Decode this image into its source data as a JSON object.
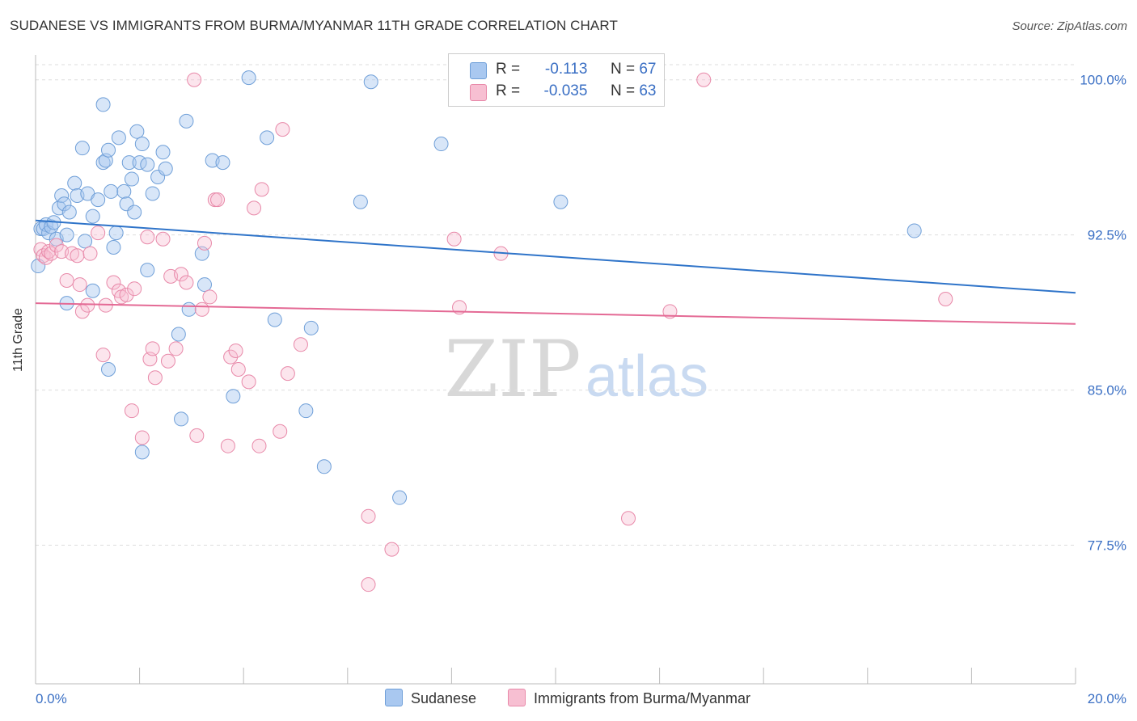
{
  "header": {
    "title": "SUDANESE VS IMMIGRANTS FROM BURMA/MYANMAR 11TH GRADE CORRELATION CHART",
    "source": "Source: ZipAtlas.com"
  },
  "watermark": {
    "zip": "ZIP",
    "atlas": "atlas"
  },
  "legend": {
    "rows": [
      {
        "r_label": "R =",
        "r_value": "-0.113",
        "n_label": "N =",
        "n_value": "67",
        "color": "#a9c8f0",
        "border": "#6f9fd8"
      },
      {
        "r_label": "R =",
        "r_value": "-0.035",
        "n_label": "N =",
        "n_value": "63",
        "color": "#f7bfd2",
        "border": "#e889a9"
      }
    ]
  },
  "bottom_legend": [
    {
      "label": "Sudanese",
      "color": "#a9c8f0",
      "border": "#6f9fd8"
    },
    {
      "label": "Immigrants from Burma/Myanmar",
      "color": "#f7bfd2",
      "border": "#e889a9"
    }
  ],
  "chart_data": {
    "type": "scatter",
    "title": "SUDANESE VS IMMIGRANTS FROM BURMA/MYANMAR 11TH GRADE CORRELATION CHART",
    "xlabel": "",
    "ylabel": "11th Grade",
    "xlim": [
      0,
      20
    ],
    "ylim": [
      70.8,
      101.2
    ],
    "x_tick_labels": [
      "0.0%",
      "20.0%"
    ],
    "y_ticks": [
      77.5,
      85.0,
      92.5,
      100.0
    ],
    "y_tick_labels": [
      "77.5%",
      "85.0%",
      "92.5%",
      "100.0%"
    ],
    "grid": "horizontal dashed",
    "colors": {
      "Sudanese": "#4f86d0",
      "Immigrants from Burma/Myanmar": "#e46a95"
    },
    "series": [
      {
        "name": "Sudanese",
        "trend": {
          "x": [
            0,
            20
          ],
          "y": [
            93.2,
            89.7
          ]
        },
        "points": [
          [
            0.05,
            91.0
          ],
          [
            0.1,
            92.8
          ],
          [
            0.15,
            92.8
          ],
          [
            0.2,
            93.0
          ],
          [
            0.25,
            92.6
          ],
          [
            0.3,
            92.9
          ],
          [
            0.35,
            93.1
          ],
          [
            0.4,
            92.3
          ],
          [
            0.45,
            93.8
          ],
          [
            0.5,
            94.4
          ],
          [
            0.55,
            94.0
          ],
          [
            0.6,
            92.5
          ],
          [
            0.65,
            93.6
          ],
          [
            0.75,
            95.0
          ],
          [
            0.8,
            94.4
          ],
          [
            0.9,
            96.7
          ],
          [
            0.95,
            92.2
          ],
          [
            1.0,
            94.5
          ],
          [
            1.1,
            93.4
          ],
          [
            1.2,
            94.2
          ],
          [
            1.3,
            96.0
          ],
          [
            1.35,
            96.1
          ],
          [
            1.4,
            96.6
          ],
          [
            1.45,
            94.6
          ],
          [
            1.5,
            91.9
          ],
          [
            1.55,
            92.6
          ],
          [
            1.6,
            97.2
          ],
          [
            1.7,
            94.6
          ],
          [
            1.75,
            94.0
          ],
          [
            1.8,
            96.0
          ],
          [
            1.85,
            95.2
          ],
          [
            1.9,
            93.6
          ],
          [
            1.95,
            97.5
          ],
          [
            2.0,
            96.0
          ],
          [
            2.05,
            96.9
          ],
          [
            2.15,
            95.9
          ],
          [
            2.25,
            94.5
          ],
          [
            2.35,
            95.3
          ],
          [
            2.45,
            96.5
          ],
          [
            2.5,
            95.7
          ],
          [
            2.9,
            98.0
          ],
          [
            3.2,
            91.6
          ],
          [
            3.25,
            90.1
          ],
          [
            3.4,
            96.1
          ],
          [
            3.6,
            96.0
          ],
          [
            3.8,
            84.7
          ],
          [
            4.1,
            100.1
          ],
          [
            4.45,
            97.2
          ],
          [
            4.6,
            88.4
          ],
          [
            5.2,
            84.0
          ],
          [
            5.3,
            88.0
          ],
          [
            5.55,
            81.3
          ],
          [
            6.25,
            94.1
          ],
          [
            6.45,
            99.9
          ],
          [
            7.0,
            79.8
          ],
          [
            7.8,
            96.9
          ],
          [
            10.1,
            94.1
          ],
          [
            16.9,
            92.7
          ],
          [
            0.6,
            89.2
          ],
          [
            1.1,
            89.8
          ],
          [
            1.4,
            86.0
          ],
          [
            2.05,
            82.0
          ],
          [
            2.15,
            90.8
          ],
          [
            2.75,
            87.7
          ],
          [
            2.8,
            83.6
          ],
          [
            2.95,
            88.9
          ],
          [
            1.3,
            98.8
          ]
        ]
      },
      {
        "name": "Immigrants from Burma/Myanmar",
        "trend": {
          "x": [
            0,
            20
          ],
          "y": [
            89.2,
            88.2
          ]
        },
        "points": [
          [
            0.1,
            91.8
          ],
          [
            0.15,
            91.5
          ],
          [
            0.2,
            91.4
          ],
          [
            0.25,
            91.7
          ],
          [
            0.3,
            91.6
          ],
          [
            0.4,
            92.0
          ],
          [
            0.5,
            91.7
          ],
          [
            0.6,
            90.3
          ],
          [
            0.7,
            91.6
          ],
          [
            0.8,
            91.5
          ],
          [
            0.85,
            90.1
          ],
          [
            0.9,
            88.8
          ],
          [
            1.0,
            89.1
          ],
          [
            1.05,
            91.6
          ],
          [
            1.2,
            92.6
          ],
          [
            1.3,
            86.7
          ],
          [
            1.35,
            89.1
          ],
          [
            1.5,
            90.2
          ],
          [
            1.6,
            89.8
          ],
          [
            1.65,
            89.5
          ],
          [
            1.75,
            89.6
          ],
          [
            1.85,
            84.0
          ],
          [
            1.9,
            89.9
          ],
          [
            2.05,
            82.7
          ],
          [
            2.15,
            92.4
          ],
          [
            2.2,
            86.5
          ],
          [
            2.25,
            87.0
          ],
          [
            2.3,
            85.6
          ],
          [
            2.45,
            92.3
          ],
          [
            2.55,
            86.4
          ],
          [
            2.6,
            90.5
          ],
          [
            2.7,
            87.0
          ],
          [
            2.8,
            90.6
          ],
          [
            2.9,
            90.2
          ],
          [
            3.05,
            100.0
          ],
          [
            3.1,
            82.8
          ],
          [
            3.2,
            88.9
          ],
          [
            3.25,
            92.1
          ],
          [
            3.35,
            89.5
          ],
          [
            3.45,
            94.2
          ],
          [
            3.5,
            94.2
          ],
          [
            3.7,
            82.3
          ],
          [
            3.75,
            86.6
          ],
          [
            3.85,
            86.9
          ],
          [
            3.9,
            86.0
          ],
          [
            4.1,
            85.4
          ],
          [
            4.2,
            93.8
          ],
          [
            4.3,
            82.3
          ],
          [
            4.35,
            94.7
          ],
          [
            4.7,
            83.0
          ],
          [
            4.75,
            97.6
          ],
          [
            4.85,
            85.8
          ],
          [
            5.1,
            87.2
          ],
          [
            6.4,
            78.9
          ],
          [
            6.85,
            77.3
          ],
          [
            6.4,
            75.6
          ],
          [
            8.05,
            92.3
          ],
          [
            8.15,
            89.0
          ],
          [
            8.95,
            91.6
          ],
          [
            11.4,
            78.8
          ],
          [
            12.2,
            88.8
          ],
          [
            12.85,
            100.0
          ],
          [
            17.5,
            89.4
          ]
        ]
      }
    ]
  }
}
